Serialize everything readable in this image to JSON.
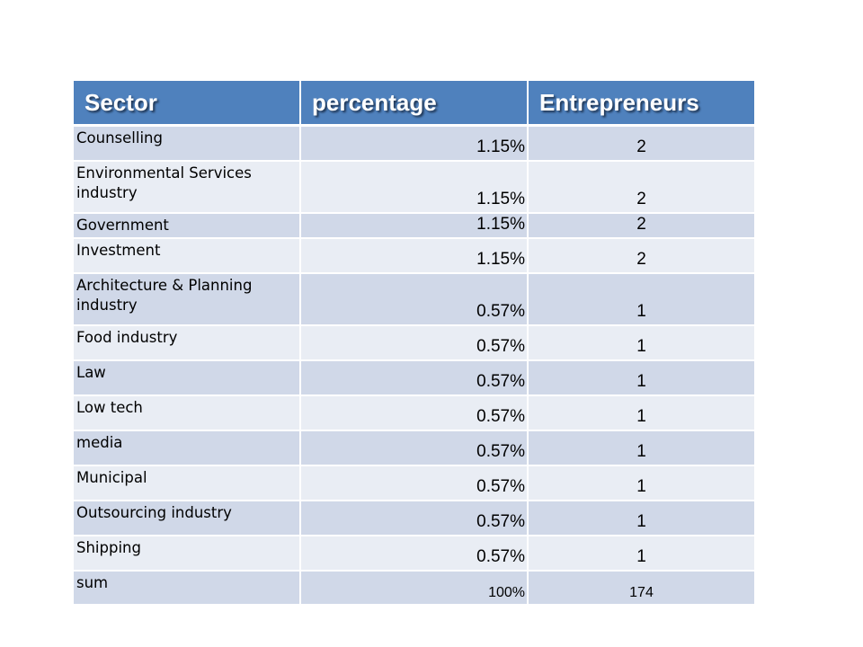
{
  "table": {
    "headers": [
      "Sector",
      "percentage",
      "Entrepreneurs"
    ],
    "rows": [
      {
        "sector": "Counselling",
        "percentage": "1.15%",
        "entrepreneurs": "2"
      },
      {
        "sector": "Environmental Services industry",
        "percentage": "1.15%",
        "entrepreneurs": "2"
      },
      {
        "sector": "Government",
        "percentage": "1.15%",
        "entrepreneurs": "2"
      },
      {
        "sector": "Investment",
        "percentage": "1.15%",
        "entrepreneurs": "2"
      },
      {
        "sector": "Architecture & Planning industry",
        "percentage": "0.57%",
        "entrepreneurs": "1"
      },
      {
        "sector": "Food industry",
        "percentage": "0.57%",
        "entrepreneurs": "1"
      },
      {
        "sector": "Law",
        "percentage": "0.57%",
        "entrepreneurs": "1"
      },
      {
        "sector": "Low tech",
        "percentage": "0.57%",
        "entrepreneurs": "1"
      },
      {
        "sector": "media",
        "percentage": "0.57%",
        "entrepreneurs": "1"
      },
      {
        "sector": "Municipal",
        "percentage": "0.57%",
        "entrepreneurs": "1"
      },
      {
        "sector": "Outsourcing industry",
        "percentage": "0.57%",
        "entrepreneurs": "1"
      },
      {
        "sector": "Shipping",
        "percentage": "0.57%",
        "entrepreneurs": "1"
      },
      {
        "sector": "sum",
        "percentage": "100%",
        "entrepreneurs": "174"
      }
    ]
  },
  "colors": {
    "header_bg": "#4f81bd",
    "row_odd_bg": "#d0d8e8",
    "row_even_bg": "#e9edf4"
  }
}
